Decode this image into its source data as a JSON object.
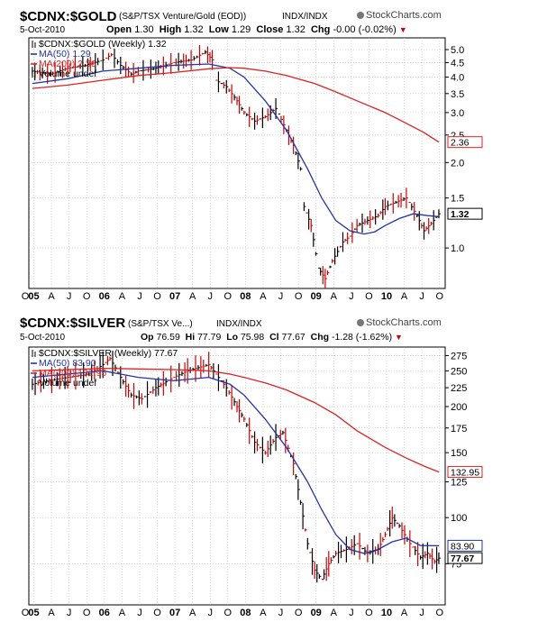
{
  "colors": {
    "price": "#000000",
    "down": "#cc0000",
    "ma50": "#2233aa",
    "ma200": "#dd2222",
    "grid": "#bbbbbb",
    "frame": "#000000"
  },
  "charts": [
    {
      "title": "$CDNX:$GOLD",
      "subtitle": "(S&P/TSX Venture/Gold (EOD))",
      "exchange": "INDX/INDX",
      "logo": "StockCharts.com",
      "date": "5-Oct-2010",
      "ohlc": [
        {
          "label": "Open",
          "value": "1.30"
        },
        {
          "label": "High",
          "value": "1.32"
        },
        {
          "label": "Low",
          "value": "1.29"
        },
        {
          "label": "Close",
          "value": "1.32"
        },
        {
          "label": "Chg",
          "value": "-0.00 (-0.02%)"
        }
      ],
      "ohlc_marker": "▼",
      "legend": [
        {
          "text": "$CDNX:$GOLD (Weekly) 1.32",
          "role": "price"
        },
        {
          "text": "MA(50) 1.29",
          "role": "ma50"
        },
        {
          "text": "MA(200) 2.36",
          "role": "ma200"
        },
        {
          "text": "Volume undef",
          "role": "volume"
        }
      ],
      "last_labels": {
        "ma200": "2.36",
        "price": "1.32"
      }
    },
    {
      "title": "$CDNX:$SILVER",
      "subtitle": "(S&P/TSX Ve...)",
      "exchange": "INDX/INDX",
      "logo": "StockCharts.com",
      "date": "5-Oct-2010",
      "ohlc": [
        {
          "label": "Op",
          "value": "76.59"
        },
        {
          "label": "Hi",
          "value": "77.79"
        },
        {
          "label": "Lo",
          "value": "75.98"
        },
        {
          "label": "Cl",
          "value": "77.67"
        },
        {
          "label": "Chg",
          "value": "-1.28 (-1.62%)"
        }
      ],
      "ohlc_marker": "▼",
      "legend": [
        {
          "text": "$CDNX:$SILVER (Weekly) 77.67",
          "role": "price"
        },
        {
          "text": "MA(50) 83.90",
          "role": "ma50"
        },
        {
          "text": "MA(200) 132.95",
          "role": "ma200"
        },
        {
          "text": "Volume undef",
          "role": "volume"
        }
      ],
      "last_labels": {
        "ma200": "132.95",
        "ma50": "83.90",
        "price": "77.67"
      }
    }
  ],
  "chart_data": [
    {
      "type": "line",
      "title": "$CDNX:$GOLD",
      "log_scale": true,
      "ylim": [
        0.72,
        5.5
      ],
      "xlim": [
        2004.95,
        2010.85
      ],
      "grid": true,
      "yticks": [
        {
          "v": 5.0,
          "l": "5.0"
        },
        {
          "v": 4.5,
          "l": "4.5"
        },
        {
          "v": 4.0,
          "l": "4.0"
        },
        {
          "v": 3.5,
          "l": "3.5"
        },
        {
          "v": 3.0,
          "l": "3.0"
        },
        {
          "v": 2.5,
          "l": "2.5"
        },
        {
          "v": 2.0,
          "l": "2.0"
        },
        {
          "v": 1.5,
          "l": "1.5"
        },
        {
          "v": 1.0,
          "l": "1.0"
        }
      ],
      "x_tick_labels": [
        "O",
        "05",
        "A",
        "J",
        "O",
        "06",
        "A",
        "J",
        "O",
        "07",
        "A",
        "J",
        "O",
        "08",
        "A",
        "J",
        "O",
        "09",
        "A",
        "J",
        "O",
        "10",
        "A",
        "J",
        "O"
      ],
      "x_tick_bold": [
        "05",
        "06",
        "07",
        "08",
        "09",
        "10"
      ],
      "series": [
        {
          "name": "$CDNX:$GOLD (Weekly)",
          "role": "price",
          "x": [
            2005.0,
            2005.25,
            2005.5,
            2005.75,
            2006.0,
            2006.12,
            2006.25,
            2006.4,
            2006.5,
            2006.75,
            2007.0,
            2007.25,
            2007.45,
            2007.55,
            2007.6,
            2007.75,
            2007.9,
            2008.0,
            2008.15,
            2008.3,
            2008.45,
            2008.6,
            2008.7,
            2008.8,
            2008.85,
            2008.95,
            2009.05,
            2009.15,
            2009.25,
            2009.4,
            2009.5,
            2009.6,
            2009.75,
            2009.9,
            2010.0,
            2010.15,
            2010.3,
            2010.45,
            2010.55,
            2010.65,
            2010.76
          ],
          "y": [
            4.2,
            4.1,
            4.3,
            4.4,
            4.6,
            4.8,
            4.4,
            4.1,
            4.2,
            4.3,
            4.5,
            4.6,
            4.9,
            4.6,
            3.9,
            3.7,
            3.3,
            3.0,
            2.8,
            2.9,
            3.1,
            2.6,
            2.3,
            1.9,
            1.4,
            1.2,
            0.85,
            0.78,
            0.9,
            1.05,
            1.1,
            1.2,
            1.25,
            1.3,
            1.4,
            1.45,
            1.5,
            1.3,
            1.15,
            1.22,
            1.32
          ]
        },
        {
          "name": "MA(50)",
          "role": "ma50",
          "x": [
            2005.0,
            2005.5,
            2006.0,
            2006.5,
            2007.0,
            2007.5,
            2007.8,
            2008.0,
            2008.3,
            2008.6,
            2008.9,
            2009.1,
            2009.3,
            2009.5,
            2009.7,
            2009.85,
            2010.0,
            2010.2,
            2010.4,
            2010.6,
            2010.76
          ],
          "y": [
            3.8,
            3.95,
            4.2,
            4.3,
            4.4,
            4.45,
            4.3,
            4.0,
            3.3,
            2.6,
            1.9,
            1.5,
            1.25,
            1.15,
            1.12,
            1.14,
            1.2,
            1.27,
            1.32,
            1.3,
            1.29
          ]
        },
        {
          "name": "MA(200)",
          "role": "ma200",
          "x": [
            2005.0,
            2005.5,
            2006.0,
            2006.5,
            2007.0,
            2007.5,
            2007.8,
            2008.0,
            2008.3,
            2008.6,
            2009.0,
            2009.3,
            2009.6,
            2010.0,
            2010.3,
            2010.55,
            2010.76
          ],
          "y": [
            3.65,
            3.75,
            3.9,
            4.05,
            4.15,
            4.28,
            4.32,
            4.3,
            4.2,
            4.05,
            3.8,
            3.55,
            3.3,
            3.0,
            2.75,
            2.55,
            2.36
          ]
        }
      ]
    },
    {
      "type": "line",
      "title": "$CDNX:$SILVER",
      "log_scale": true,
      "ylim": [
        58,
        290
      ],
      "xlim": [
        2004.95,
        2010.85
      ],
      "grid": true,
      "yticks": [
        {
          "v": 275,
          "l": "275"
        },
        {
          "v": 250,
          "l": "250"
        },
        {
          "v": 225,
          "l": "225"
        },
        {
          "v": 200,
          "l": "200"
        },
        {
          "v": 175,
          "l": "175"
        },
        {
          "v": 150,
          "l": "150"
        },
        {
          "v": 125,
          "l": "125"
        },
        {
          "v": 100,
          "l": "100"
        },
        {
          "v": 75,
          "l": "75"
        }
      ],
      "x_tick_labels": [
        "O",
        "05",
        "A",
        "J",
        "O",
        "06",
        "A",
        "J",
        "O",
        "07",
        "A",
        "J",
        "O",
        "08",
        "A",
        "J",
        "O",
        "09",
        "A",
        "J",
        "O",
        "10",
        "A",
        "J",
        "O"
      ],
      "x_tick_bold": [
        "05",
        "06",
        "07",
        "08",
        "09",
        "10"
      ],
      "series": [
        {
          "name": "$CDNX:$SILVER (Weekly)",
          "role": "price",
          "x": [
            2005.0,
            2005.2,
            2005.5,
            2005.8,
            2006.0,
            2006.1,
            2006.25,
            2006.4,
            2006.55,
            2006.75,
            2007.0,
            2007.2,
            2007.35,
            2007.5,
            2007.6,
            2007.75,
            2007.9,
            2008.0,
            2008.15,
            2008.3,
            2008.45,
            2008.55,
            2008.7,
            2008.8,
            2008.9,
            2009.0,
            2009.1,
            2009.2,
            2009.3,
            2009.45,
            2009.6,
            2009.75,
            2009.9,
            2010.0,
            2010.1,
            2010.2,
            2010.35,
            2010.5,
            2010.6,
            2010.7,
            2010.76
          ],
          "y": [
            230,
            235,
            240,
            245,
            260,
            270,
            240,
            215,
            210,
            225,
            240,
            250,
            255,
            260,
            245,
            225,
            200,
            185,
            160,
            150,
            165,
            170,
            140,
            110,
            85,
            72,
            68,
            75,
            80,
            82,
            85,
            80,
            82,
            90,
            100,
            95,
            85,
            78,
            80,
            76,
            77.67
          ]
        },
        {
          "name": "MA(50)",
          "role": "ma50",
          "x": [
            2005.0,
            2005.5,
            2006.0,
            2006.5,
            2007.0,
            2007.5,
            2007.8,
            2008.0,
            2008.3,
            2008.6,
            2008.9,
            2009.1,
            2009.3,
            2009.5,
            2009.7,
            2009.9,
            2010.1,
            2010.3,
            2010.5,
            2010.76
          ],
          "y": [
            240,
            245,
            250,
            240,
            235,
            240,
            230,
            215,
            185,
            155,
            125,
            105,
            90,
            82,
            80,
            82,
            86,
            88,
            84,
            83.9
          ]
        },
        {
          "name": "MA(200)",
          "role": "ma200",
          "x": [
            2005.0,
            2005.5,
            2006.0,
            2006.5,
            2007.0,
            2007.5,
            2007.8,
            2008.0,
            2008.3,
            2008.6,
            2009.0,
            2009.3,
            2009.6,
            2010.0,
            2010.3,
            2010.55,
            2010.76
          ],
          "y": [
            250,
            252,
            254,
            253,
            252,
            250,
            245,
            240,
            232,
            222,
            205,
            190,
            172,
            155,
            145,
            138,
            132.95
          ]
        }
      ]
    }
  ]
}
